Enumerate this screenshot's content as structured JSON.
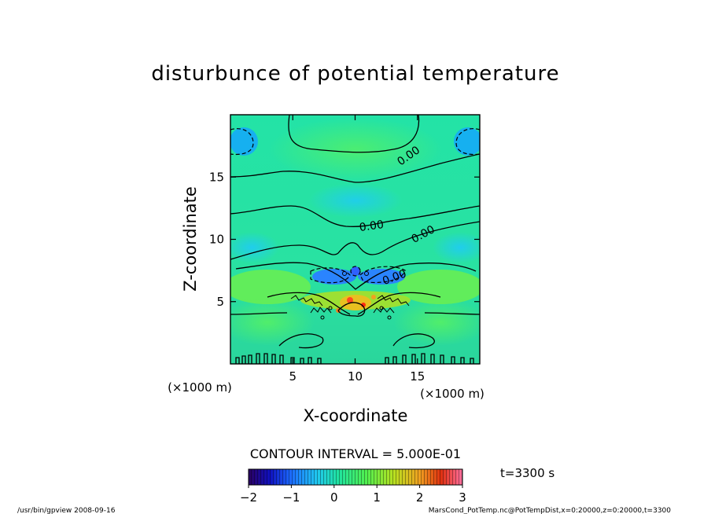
{
  "chart_data": {
    "type": "heatmap",
    "title": "disturbunce of potential temperature",
    "xlabel": "X-coordinate",
    "ylabel": "Z-coordinate",
    "x_unit_left": "(×1000 m)",
    "x_unit_right": "(×1000 m)",
    "xlim": [
      0,
      20
    ],
    "ylim": [
      0,
      20
    ],
    "xticks": [
      5,
      10,
      15
    ],
    "yticks": [
      5,
      10,
      15
    ],
    "contour_interval_text": "CONTOUR INTERVAL = 5.000E-01",
    "contour_labels": [
      "0.00",
      "0.00",
      "0.00",
      "0.00"
    ],
    "time_text": "t=3300 s",
    "colorbar": {
      "min": -2,
      "max": 3,
      "ticks": [
        "−2",
        "−1",
        "0",
        "1",
        "2",
        "3"
      ]
    },
    "colors": {
      "neg_deep": "#1565ff",
      "neg": "#29b6f6",
      "zero": "#00e5b0",
      "pos": "#4cff66",
      "pos_strong": "#a0e020",
      "max": "#ff3300"
    }
  },
  "footer": {
    "left": "/usr/bin/gpview   2008-09-16",
    "right": "MarsCond_PotTemp.nc@PotTempDist,x=0:20000,z=0:20000,t=3300"
  }
}
